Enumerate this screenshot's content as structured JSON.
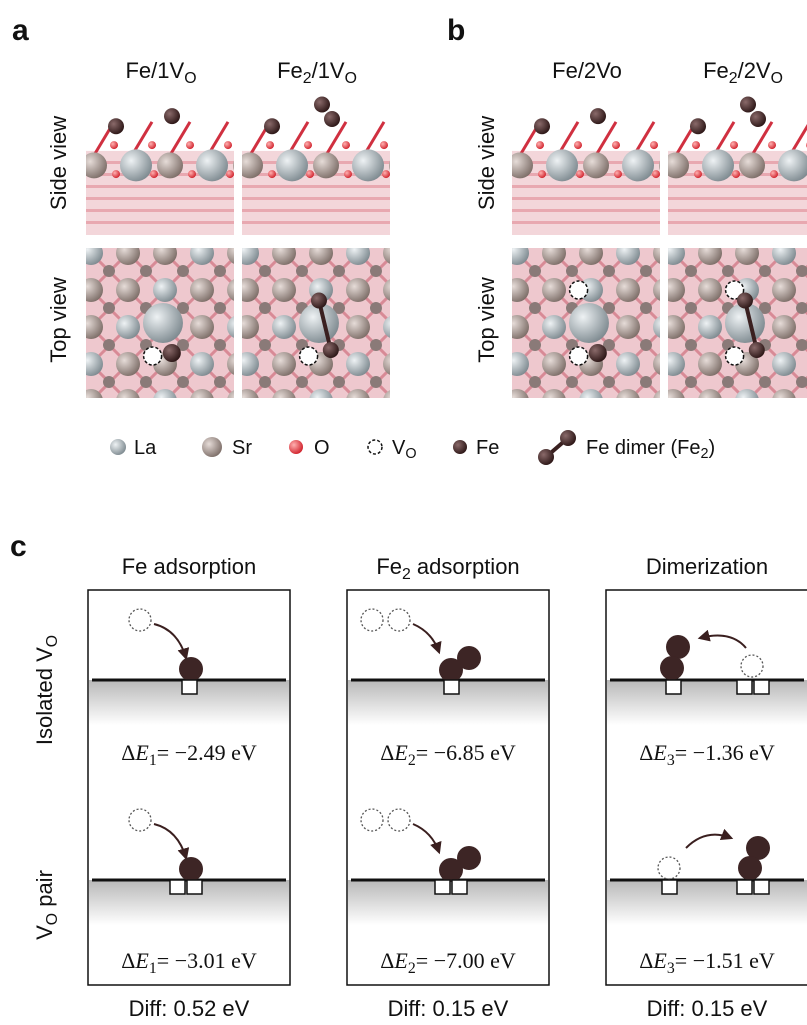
{
  "panel_a": {
    "label": "a",
    "columns": [
      [
        {
          "t": "Fe/1V"
        },
        {
          "sub": "O"
        }
      ],
      [
        {
          "t": "Fe"
        },
        {
          "sub": "2"
        },
        {
          "t": "/1V"
        },
        {
          "sub": "O"
        }
      ]
    ],
    "rows": [
      "Side view",
      "Top view"
    ]
  },
  "panel_b": {
    "label": "b",
    "columns": [
      [
        {
          "t": "Fe/2Vo"
        }
      ],
      [
        {
          "t": "Fe"
        },
        {
          "sub": "2"
        },
        {
          "t": "/2V"
        },
        {
          "sub": "O"
        }
      ]
    ],
    "rows": [
      "Side view",
      "Top view"
    ]
  },
  "legend": [
    [
      {
        "t": "La"
      }
    ],
    [
      {
        "t": "Sr"
      }
    ],
    [
      {
        "t": "O"
      }
    ],
    [
      {
        "t": "V"
      },
      {
        "sub": "O"
      }
    ],
    [
      {
        "t": "Fe"
      }
    ],
    [
      {
        "t": "Fe dimer (Fe"
      },
      {
        "sub": "2"
      },
      {
        "t": ")"
      }
    ]
  ],
  "panel_c": {
    "label": "c",
    "columns": [
      [
        {
          "t": "Fe adsorption"
        }
      ],
      [
        {
          "t": "Fe"
        },
        {
          "sub": "2"
        },
        {
          "t": " adsorption"
        }
      ],
      [
        {
          "t": "Dimerization"
        }
      ]
    ],
    "rows": [
      [
        {
          "t": "Isolated V"
        },
        {
          "sub": "O"
        }
      ],
      [
        {
          "t": "V"
        },
        {
          "sub": "O"
        },
        {
          "t": " pair"
        }
      ]
    ],
    "energies": [
      [
        [
          {
            "t": "Δ"
          },
          {
            "i": "E"
          },
          {
            "sub": "1"
          },
          {
            "t": "= −2.49 eV"
          }
        ],
        [
          {
            "t": "Δ"
          },
          {
            "i": "E"
          },
          {
            "sub": "2"
          },
          {
            "t": "= −6.85 eV"
          }
        ],
        [
          {
            "t": "Δ"
          },
          {
            "i": "E"
          },
          {
            "sub": "3"
          },
          {
            "t": "= −1.36 eV"
          }
        ]
      ],
      [
        [
          {
            "t": "Δ"
          },
          {
            "i": "E"
          },
          {
            "sub": "1"
          },
          {
            "t": "= −3.01 eV"
          }
        ],
        [
          {
            "t": "Δ"
          },
          {
            "i": "E"
          },
          {
            "sub": "2"
          },
          {
            "t": "= −7.00 eV"
          }
        ],
        [
          {
            "t": "Δ"
          },
          {
            "i": "E"
          },
          {
            "sub": "3"
          },
          {
            "t": "= −1.51 eV"
          }
        ]
      ]
    ],
    "diffs": [
      "Diff: 0.52 eV",
      "Diff: 0.15 eV",
      "Diff: 0.15 eV"
    ]
  }
}
